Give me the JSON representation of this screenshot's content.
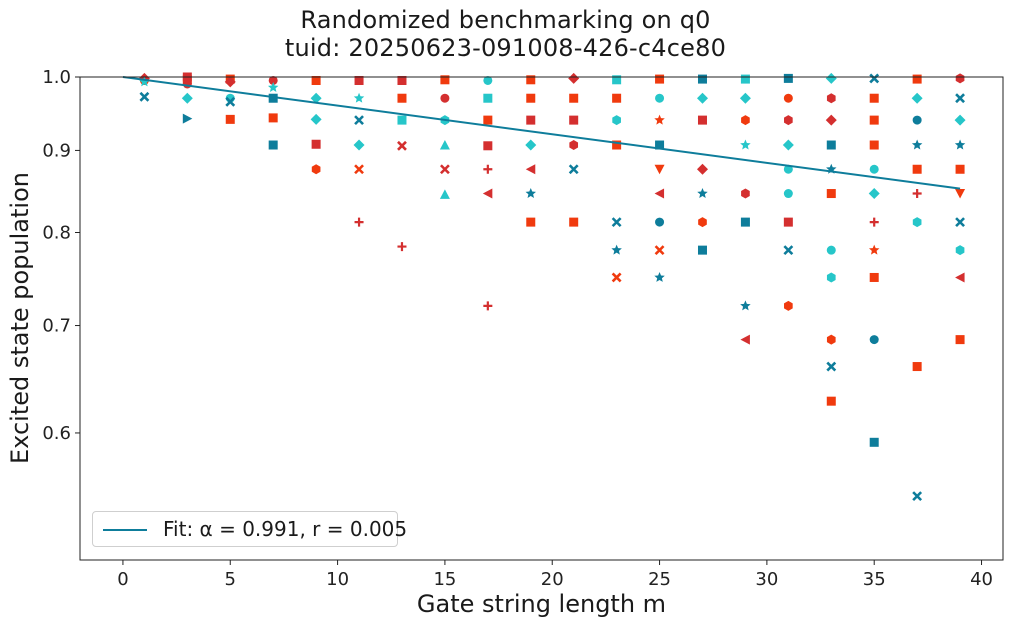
{
  "title_line1": "Randomized benchmarking on q0",
  "title_line2": "tuid: 20250623-091008-426-c4ce80",
  "chart_data": {
    "type": "scatter",
    "title": "Randomized benchmarking on q0\ntuid: 20250623-091008-426-c4ce80",
    "xlabel": "Gate string length m",
    "ylabel": "Excited state population",
    "xlim": [
      -2,
      41
    ],
    "ylim": [
      0.5,
      1.0
    ],
    "yscale": "log",
    "xticks": [
      0,
      5,
      10,
      15,
      20,
      25,
      30,
      35,
      40
    ],
    "yticks": [
      0.6,
      0.7,
      0.8,
      0.9,
      1.0
    ],
    "ytick_labels": [
      "0.6",
      "0.7",
      "0.8",
      "0.9",
      "1.0"
    ],
    "grid": false,
    "legend_position": "bottom-left",
    "colors": [
      "#0e7d9b",
      "#f03a0e",
      "#d42f2f",
      "#26c6c9"
    ],
    "fit": {
      "name": "Fit",
      "legend_text": "Fit: α = 0.991, r = 0.005",
      "x": [
        0,
        39
      ],
      "y": [
        1.0,
        0.852
      ],
      "color": "#0e7d9b"
    },
    "points": [
      [
        1,
        0.972,
        "cross",
        "#0e7d9b"
      ],
      [
        1,
        0.995,
        "circle",
        "#f03a0e"
      ],
      [
        1,
        0.998,
        "diamond",
        "#d42f2f"
      ],
      [
        1,
        0.993,
        "star",
        "#26c6c9"
      ],
      [
        3,
        0.942,
        "tri-right",
        "#0e7d9b"
      ],
      [
        3,
        0.97,
        "diamond",
        "#26c6c9"
      ],
      [
        3,
        0.996,
        "square",
        "#f03a0e"
      ],
      [
        3,
        0.99,
        "circle",
        "#d42f2f"
      ],
      [
        3,
        1.0,
        "square",
        "#d42f2f"
      ],
      [
        5,
        0.941,
        "square",
        "#f03a0e"
      ],
      [
        5,
        0.97,
        "circle",
        "#26c6c9"
      ],
      [
        5,
        0.965,
        "cross",
        "#0e7d9b"
      ],
      [
        5,
        0.997,
        "square",
        "#f03a0e"
      ],
      [
        5,
        0.993,
        "diamond",
        "#d42f2f"
      ],
      [
        7,
        0.907,
        "square",
        "#0e7d9b"
      ],
      [
        7,
        0.943,
        "square",
        "#f03a0e"
      ],
      [
        7,
        0.97,
        "square",
        "#0e7d9b"
      ],
      [
        7,
        0.995,
        "circle",
        "#d42f2f"
      ],
      [
        7,
        0.985,
        "star",
        "#26c6c9"
      ],
      [
        9,
        0.876,
        "hexagon",
        "#f03a0e"
      ],
      [
        9,
        0.908,
        "square",
        "#d42f2f"
      ],
      [
        9,
        0.941,
        "diamond",
        "#26c6c9"
      ],
      [
        9,
        0.97,
        "diamond",
        "#26c6c9"
      ],
      [
        9,
        0.995,
        "square",
        "#f03a0e"
      ],
      [
        11,
        0.812,
        "plus",
        "#d42f2f"
      ],
      [
        11,
        0.876,
        "cross",
        "#f03a0e"
      ],
      [
        11,
        0.907,
        "diamond",
        "#26c6c9"
      ],
      [
        11,
        0.94,
        "cross",
        "#0e7d9b"
      ],
      [
        11,
        0.97,
        "star",
        "#26c6c9"
      ],
      [
        11,
        0.995,
        "square",
        "#d42f2f"
      ],
      [
        13,
        0.784,
        "plus",
        "#d42f2f"
      ],
      [
        13,
        0.906,
        "cross",
        "#d42f2f"
      ],
      [
        13,
        0.94,
        "square",
        "#26c6c9"
      ],
      [
        13,
        0.97,
        "square",
        "#f03a0e"
      ],
      [
        13,
        0.995,
        "square",
        "#d42f2f"
      ],
      [
        15,
        0.845,
        "triangle",
        "#26c6c9"
      ],
      [
        15,
        0.876,
        "cross",
        "#d42f2f"
      ],
      [
        15,
        0.907,
        "triangle",
        "#26c6c9"
      ],
      [
        15,
        0.94,
        "hexagon",
        "#26c6c9"
      ],
      [
        15,
        0.97,
        "circle",
        "#d42f2f"
      ],
      [
        15,
        0.996,
        "square",
        "#f03a0e"
      ],
      [
        17,
        0.72,
        "plus",
        "#d42f2f"
      ],
      [
        17,
        0.846,
        "tri-left",
        "#d42f2f"
      ],
      [
        17,
        0.876,
        "plus",
        "#d42f2f"
      ],
      [
        17,
        0.906,
        "square",
        "#d42f2f"
      ],
      [
        17,
        0.94,
        "square",
        "#f03a0e"
      ],
      [
        17,
        0.97,
        "square",
        "#26c6c9"
      ],
      [
        17,
        0.995,
        "circle",
        "#26c6c9"
      ],
      [
        19,
        0.812,
        "square",
        "#f03a0e"
      ],
      [
        19,
        0.846,
        "star",
        "#0e7d9b"
      ],
      [
        19,
        0.876,
        "tri-left",
        "#d42f2f"
      ],
      [
        19,
        0.907,
        "diamond",
        "#26c6c9"
      ],
      [
        19,
        0.94,
        "square",
        "#d42f2f"
      ],
      [
        19,
        0.97,
        "square",
        "#f03a0e"
      ],
      [
        19,
        0.996,
        "square",
        "#f03a0e"
      ],
      [
        21,
        0.812,
        "square",
        "#f03a0e"
      ],
      [
        21,
        0.876,
        "cross",
        "#0e7d9b"
      ],
      [
        21,
        0.907,
        "hexagon",
        "#d42f2f"
      ],
      [
        21,
        0.94,
        "square",
        "#d42f2f"
      ],
      [
        21,
        0.97,
        "square",
        "#f03a0e"
      ],
      [
        21,
        0.998,
        "diamond",
        "#d42f2f"
      ],
      [
        23,
        0.75,
        "cross",
        "#f03a0e"
      ],
      [
        23,
        0.78,
        "star",
        "#0e7d9b"
      ],
      [
        23,
        0.812,
        "cross",
        "#0e7d9b"
      ],
      [
        23,
        0.907,
        "square",
        "#f03a0e"
      ],
      [
        23,
        0.94,
        "hexagon",
        "#26c6c9"
      ],
      [
        23,
        0.97,
        "square",
        "#f03a0e"
      ],
      [
        23,
        0.996,
        "square",
        "#26c6c9"
      ],
      [
        25,
        0.75,
        "star",
        "#0e7d9b"
      ],
      [
        25,
        0.78,
        "cross",
        "#f03a0e"
      ],
      [
        25,
        0.812,
        "circle",
        "#0e7d9b"
      ],
      [
        25,
        0.846,
        "tri-left",
        "#d42f2f"
      ],
      [
        25,
        0.876,
        "tri-down",
        "#f03a0e"
      ],
      [
        25,
        0.907,
        "square",
        "#0e7d9b"
      ],
      [
        25,
        0.94,
        "star",
        "#f03a0e"
      ],
      [
        25,
        0.97,
        "circle",
        "#26c6c9"
      ],
      [
        25,
        0.997,
        "square",
        "#f03a0e"
      ],
      [
        27,
        0.78,
        "square",
        "#0e7d9b"
      ],
      [
        27,
        0.812,
        "hexagon",
        "#f03a0e"
      ],
      [
        27,
        0.846,
        "star",
        "#0e7d9b"
      ],
      [
        27,
        0.876,
        "diamond",
        "#d42f2f"
      ],
      [
        27,
        0.94,
        "square",
        "#d42f2f"
      ],
      [
        27,
        0.97,
        "diamond",
        "#26c6c9"
      ],
      [
        27,
        0.997,
        "square",
        "#0e7d9b"
      ],
      [
        29,
        0.686,
        "tri-left",
        "#d42f2f"
      ],
      [
        29,
        0.72,
        "star",
        "#0e7d9b"
      ],
      [
        29,
        0.812,
        "square",
        "#0e7d9b"
      ],
      [
        29,
        0.846,
        "hexagon",
        "#d42f2f"
      ],
      [
        29,
        0.907,
        "star",
        "#26c6c9"
      ],
      [
        29,
        0.94,
        "hexagon",
        "#f03a0e"
      ],
      [
        29,
        0.97,
        "diamond",
        "#26c6c9"
      ],
      [
        29,
        0.997,
        "square",
        "#26c6c9"
      ],
      [
        31,
        0.72,
        "hexagon",
        "#f03a0e"
      ],
      [
        31,
        0.78,
        "cross",
        "#0e7d9b"
      ],
      [
        31,
        0.812,
        "square",
        "#d42f2f"
      ],
      [
        31,
        0.846,
        "circle",
        "#26c6c9"
      ],
      [
        31,
        0.876,
        "circle",
        "#26c6c9"
      ],
      [
        31,
        0.907,
        "diamond",
        "#26c6c9"
      ],
      [
        31,
        0.94,
        "hexagon",
        "#d42f2f"
      ],
      [
        31,
        0.97,
        "circle",
        "#f03a0e"
      ],
      [
        31,
        0.998,
        "square",
        "#0e7d9b"
      ],
      [
        33,
        0.628,
        "square",
        "#f03a0e"
      ],
      [
        33,
        0.66,
        "cross",
        "#0e7d9b"
      ],
      [
        33,
        0.686,
        "hexagon",
        "#f03a0e"
      ],
      [
        33,
        0.75,
        "hexagon",
        "#26c6c9"
      ],
      [
        33,
        0.78,
        "circle",
        "#26c6c9"
      ],
      [
        33,
        0.846,
        "square",
        "#f03a0e"
      ],
      [
        33,
        0.876,
        "star",
        "#0e7d9b"
      ],
      [
        33,
        0.907,
        "square",
        "#0e7d9b"
      ],
      [
        33,
        0.94,
        "diamond",
        "#d42f2f"
      ],
      [
        33,
        0.97,
        "hexagon",
        "#d42f2f"
      ],
      [
        33,
        0.998,
        "diamond",
        "#26c6c9"
      ],
      [
        35,
        0.592,
        "square",
        "#0e7d9b"
      ],
      [
        35,
        0.686,
        "circle",
        "#0e7d9b"
      ],
      [
        35,
        0.75,
        "square",
        "#f03a0e"
      ],
      [
        35,
        0.78,
        "star",
        "#f03a0e"
      ],
      [
        35,
        0.812,
        "plus",
        "#d42f2f"
      ],
      [
        35,
        0.846,
        "diamond",
        "#26c6c9"
      ],
      [
        35,
        0.876,
        "circle",
        "#26c6c9"
      ],
      [
        35,
        0.907,
        "square",
        "#f03a0e"
      ],
      [
        35,
        0.94,
        "square",
        "#f03a0e"
      ],
      [
        35,
        0.97,
        "square",
        "#f03a0e"
      ],
      [
        35,
        0.998,
        "cross",
        "#0e7d9b"
      ],
      [
        37,
        0.548,
        "cross",
        "#0e7d9b"
      ],
      [
        37,
        0.66,
        "square",
        "#f03a0e"
      ],
      [
        37,
        0.812,
        "hexagon",
        "#26c6c9"
      ],
      [
        37,
        0.846,
        "plus",
        "#d42f2f"
      ],
      [
        37,
        0.876,
        "square",
        "#f03a0e"
      ],
      [
        37,
        0.907,
        "star",
        "#0e7d9b"
      ],
      [
        37,
        0.94,
        "circle",
        "#0e7d9b"
      ],
      [
        37,
        0.97,
        "diamond",
        "#26c6c9"
      ],
      [
        37,
        0.997,
        "square",
        "#f03a0e"
      ],
      [
        39,
        0.686,
        "square",
        "#f03a0e"
      ],
      [
        39,
        0.75,
        "tri-left",
        "#d42f2f"
      ],
      [
        39,
        0.78,
        "hexagon",
        "#26c6c9"
      ],
      [
        39,
        0.812,
        "cross",
        "#0e7d9b"
      ],
      [
        39,
        0.846,
        "tri-down",
        "#f03a0e"
      ],
      [
        39,
        0.876,
        "square",
        "#f03a0e"
      ],
      [
        39,
        0.907,
        "star",
        "#0e7d9b"
      ],
      [
        39,
        0.94,
        "diamond",
        "#26c6c9"
      ],
      [
        39,
        0.97,
        "cross",
        "#0e7d9b"
      ],
      [
        39,
        0.998,
        "hexagon",
        "#d42f2f"
      ]
    ]
  }
}
